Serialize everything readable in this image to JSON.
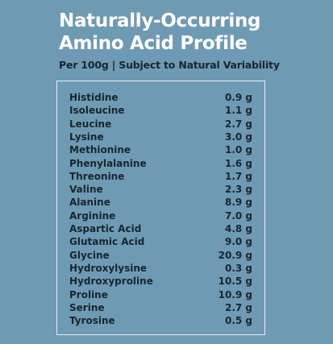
{
  "header": {
    "title_lines": [
      "Naturally-Occurring",
      "Amino Acid Profile"
    ],
    "subtitle": "Per 100g | Subject to Natural Variability"
  },
  "table": {
    "rows": [
      [
        "Histidine",
        "0.9 g"
      ],
      [
        "Isoleucine",
        "1.1 g"
      ],
      [
        "Leucine",
        "2.7 g"
      ],
      [
        "Lysine",
        "3.0 g"
      ],
      [
        "Methionine",
        "1.0 g"
      ],
      [
        "Phenylalanine",
        "1.6 g"
      ],
      [
        "Threonine",
        "1.7 g"
      ],
      [
        "Valine",
        "2.3 g"
      ],
      [
        "Alanine",
        "8.9 g"
      ],
      [
        "Arginine",
        "7.0 g"
      ],
      [
        "Aspartic Acid",
        "4.8 g"
      ],
      [
        "Glutamic Acid",
        "9.0 g"
      ],
      [
        "Glycine",
        "20.9 g"
      ],
      [
        "Hydroxylysine",
        "0.3 g"
      ],
      [
        "Hydroxyproline",
        "10.5 g"
      ],
      [
        "Proline",
        "10.9 g"
      ],
      [
        "Serine",
        "2.7 g"
      ],
      [
        "Tyrosine",
        "0.5 g"
      ]
    ]
  }
}
